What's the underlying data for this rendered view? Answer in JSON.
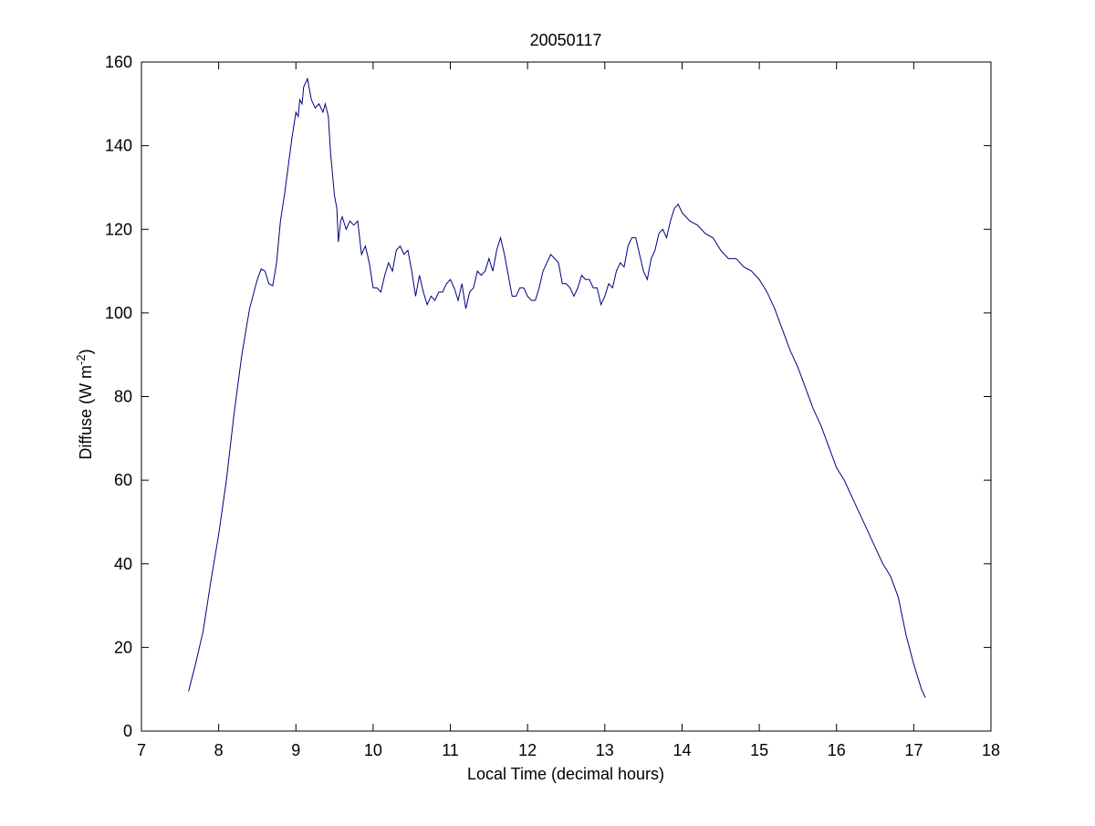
{
  "chart_data": {
    "type": "line",
    "title": "20050117",
    "xlabel": "Local Time (decimal hours)",
    "ylabel": [
      "Diffuse (W m",
      "-2",
      ")"
    ],
    "xlim": [
      7,
      18
    ],
    "xticks": [
      7,
      8,
      9,
      10,
      11,
      12,
      13,
      14,
      15,
      16,
      17,
      18
    ],
    "ylim": [
      0,
      160
    ],
    "yticks": [
      0,
      20,
      40,
      60,
      80,
      100,
      120,
      140,
      160
    ],
    "grid": false,
    "series": [
      {
        "color": "#000080",
        "x": [
          7.61,
          7.7,
          7.8,
          7.9,
          8.0,
          8.1,
          8.2,
          8.3,
          8.4,
          8.5,
          8.55,
          8.6,
          8.65,
          8.7,
          8.75,
          8.8,
          8.85,
          8.9,
          8.95,
          9.0,
          9.03,
          9.05,
          9.08,
          9.1,
          9.15,
          9.2,
          9.25,
          9.3,
          9.35,
          9.38,
          9.42,
          9.45,
          9.5,
          9.53,
          9.55,
          9.58,
          9.6,
          9.65,
          9.7,
          9.75,
          9.8,
          9.85,
          9.9,
          9.95,
          10.0,
          10.05,
          10.1,
          10.15,
          10.2,
          10.25,
          10.3,
          10.35,
          10.4,
          10.45,
          10.5,
          10.55,
          10.6,
          10.65,
          10.7,
          10.75,
          10.8,
          10.85,
          10.9,
          10.95,
          11.0,
          11.05,
          11.1,
          11.15,
          11.2,
          11.25,
          11.3,
          11.35,
          11.4,
          11.45,
          11.5,
          11.55,
          11.6,
          11.65,
          11.7,
          11.75,
          11.8,
          11.85,
          11.9,
          11.95,
          12.0,
          12.05,
          12.1,
          12.15,
          12.2,
          12.25,
          12.3,
          12.35,
          12.4,
          12.45,
          12.5,
          12.55,
          12.6,
          12.65,
          12.7,
          12.75,
          12.8,
          12.85,
          12.9,
          12.95,
          13.0,
          13.05,
          13.1,
          13.15,
          13.2,
          13.25,
          13.3,
          13.35,
          13.4,
          13.45,
          13.5,
          13.55,
          13.6,
          13.65,
          13.7,
          13.75,
          13.8,
          13.85,
          13.9,
          13.95,
          14.0,
          14.05,
          14.1,
          14.2,
          14.3,
          14.4,
          14.5,
          14.6,
          14.7,
          14.8,
          14.9,
          15.0,
          15.1,
          15.2,
          15.3,
          15.4,
          15.5,
          15.6,
          15.7,
          15.8,
          15.9,
          16.0,
          16.1,
          16.2,
          16.3,
          16.4,
          16.5,
          16.6,
          16.7,
          16.8,
          16.9,
          17.0,
          17.1,
          17.15
        ],
        "values": [
          9.5,
          16,
          24,
          36,
          47,
          60,
          76,
          90,
          101,
          108,
          110.5,
          110,
          107,
          106.5,
          112,
          122,
          128,
          135,
          142,
          148,
          147,
          151,
          150,
          154,
          156,
          151,
          149,
          150,
          148,
          150,
          147,
          138,
          128,
          125,
          117,
          122,
          123,
          120,
          122,
          121,
          122,
          114,
          116,
          112,
          106,
          106,
          105,
          109,
          112,
          110,
          115,
          116,
          114,
          115,
          110,
          104,
          109,
          105,
          102,
          104,
          103,
          105,
          105,
          107,
          108,
          106,
          103,
          107,
          101,
          105,
          106,
          110,
          109,
          110,
          113,
          110,
          115,
          118,
          114,
          109,
          104,
          104,
          106,
          106,
          104,
          103,
          103,
          106,
          110,
          112,
          114,
          113,
          112,
          107,
          107,
          106,
          104,
          106,
          109,
          108,
          108,
          106,
          106,
          102,
          104,
          107,
          106,
          110,
          112,
          111,
          116,
          118,
          118,
          114,
          110,
          108,
          113,
          115,
          119,
          120,
          118,
          122,
          125,
          126,
          124,
          123,
          122,
          121,
          119,
          118,
          115,
          113,
          113,
          111,
          110,
          108,
          105,
          101,
          96,
          91,
          87,
          82,
          77,
          73,
          68,
          63,
          60,
          56,
          52,
          48,
          44,
          40,
          37,
          32,
          23,
          16,
          10,
          8
        ]
      }
    ]
  }
}
